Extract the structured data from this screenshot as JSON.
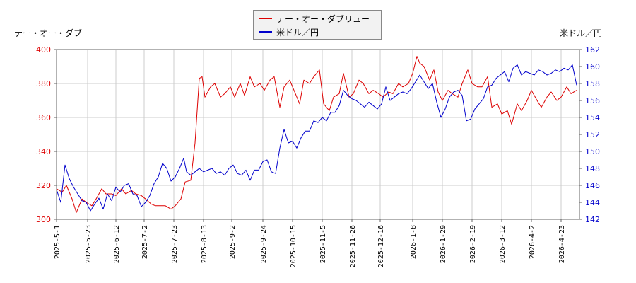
{
  "chart_data": {
    "type": "line",
    "y_left_label": "テー・オー・ダブ",
    "y_right_label": "米ドル／円",
    "ylim_left": [
      300,
      400
    ],
    "ylim_right": [
      142,
      162
    ],
    "yticks_left": [
      300,
      320,
      340,
      360,
      380,
      400
    ],
    "yticks_right": [
      142,
      144,
      146,
      148,
      150,
      152,
      154,
      156,
      158,
      160,
      162
    ],
    "xlim": [
      "2025-05-01",
      "2026-05-06"
    ],
    "xticks": [
      "2025-5-1",
      "2025-5-23",
      "2025-6-12",
      "2025-7-2",
      "2025-7-23",
      "2025-8-13",
      "2025-9-2",
      "2025-9-24",
      "2025-10-15",
      "2025-11-5",
      "2025-11-26",
      "2025-12-16",
      "2026-1-8",
      "2026-1-29",
      "2026-2-19",
      "2026-3-12",
      "2026-4-2",
      "2026-4-23"
    ],
    "grid": true,
    "legend_position": "top-center",
    "series": [
      {
        "name": "テー・オー・ダブリュー",
        "axis": "left",
        "color": "#dd0000",
        "points": [
          [
            "2025-05-01",
            318
          ],
          [
            "2025-05-05",
            316
          ],
          [
            "2025-05-08",
            320
          ],
          [
            "2025-05-12",
            312
          ],
          [
            "2025-05-15",
            304
          ],
          [
            "2025-05-19",
            312
          ],
          [
            "2025-05-22",
            310
          ],
          [
            "2025-05-26",
            308
          ],
          [
            "2025-05-29",
            312
          ],
          [
            "2025-06-02",
            318
          ],
          [
            "2025-06-05",
            315
          ],
          [
            "2025-06-09",
            315
          ],
          [
            "2025-06-12",
            314
          ],
          [
            "2025-06-16",
            318
          ],
          [
            "2025-06-19",
            315
          ],
          [
            "2025-06-23",
            317
          ],
          [
            "2025-06-26",
            315
          ],
          [
            "2025-06-30",
            314
          ],
          [
            "2025-07-03",
            312
          ],
          [
            "2025-07-07",
            309
          ],
          [
            "2025-07-10",
            308
          ],
          [
            "2025-07-14",
            308
          ],
          [
            "2025-07-17",
            308
          ],
          [
            "2025-07-21",
            306
          ],
          [
            "2025-07-24",
            308
          ],
          [
            "2025-07-28",
            312
          ],
          [
            "2025-07-31",
            322
          ],
          [
            "2025-08-04",
            323
          ],
          [
            "2025-08-07",
            345
          ],
          [
            "2025-08-10",
            383
          ],
          [
            "2025-08-12",
            384
          ],
          [
            "2025-08-14",
            372
          ],
          [
            "2025-08-18",
            378
          ],
          [
            "2025-08-21",
            380
          ],
          [
            "2025-08-25",
            372
          ],
          [
            "2025-08-28",
            374
          ],
          [
            "2025-09-01",
            378
          ],
          [
            "2025-09-04",
            372
          ],
          [
            "2025-09-08",
            380
          ],
          [
            "2025-09-11",
            373
          ],
          [
            "2025-09-15",
            384
          ],
          [
            "2025-09-18",
            378
          ],
          [
            "2025-09-22",
            380
          ],
          [
            "2025-09-25",
            376
          ],
          [
            "2025-09-29",
            382
          ],
          [
            "2025-10-02",
            384
          ],
          [
            "2025-10-06",
            366
          ],
          [
            "2025-10-09",
            378
          ],
          [
            "2025-10-13",
            382
          ],
          [
            "2025-10-16",
            376
          ],
          [
            "2025-10-20",
            368
          ],
          [
            "2025-10-23",
            382
          ],
          [
            "2025-10-27",
            380
          ],
          [
            "2025-10-30",
            384
          ],
          [
            "2025-11-03",
            388
          ],
          [
            "2025-11-06",
            368
          ],
          [
            "2025-11-10",
            364
          ],
          [
            "2025-11-13",
            372
          ],
          [
            "2025-11-17",
            374
          ],
          [
            "2025-11-20",
            386
          ],
          [
            "2025-11-24",
            372
          ],
          [
            "2025-11-27",
            374
          ],
          [
            "2025-12-01",
            382
          ],
          [
            "2025-12-04",
            380
          ],
          [
            "2025-12-08",
            374
          ],
          [
            "2025-12-11",
            376
          ],
          [
            "2025-12-15",
            374
          ],
          [
            "2025-12-18",
            372
          ],
          [
            "2025-12-22",
            375
          ],
          [
            "2025-12-25",
            374
          ],
          [
            "2025-12-29",
            380
          ],
          [
            "2026-01-01",
            378
          ],
          [
            "2026-01-05",
            380
          ],
          [
            "2026-01-08",
            386
          ],
          [
            "2026-01-11",
            396
          ],
          [
            "2026-01-13",
            392
          ],
          [
            "2026-01-16",
            390
          ],
          [
            "2026-01-20",
            382
          ],
          [
            "2026-01-23",
            388
          ],
          [
            "2026-01-26",
            375
          ],
          [
            "2026-01-29",
            370
          ],
          [
            "2026-02-02",
            376
          ],
          [
            "2026-02-05",
            374
          ],
          [
            "2026-02-09",
            372
          ],
          [
            "2026-02-12",
            380
          ],
          [
            "2026-02-16",
            388
          ],
          [
            "2026-02-19",
            380
          ],
          [
            "2026-02-23",
            378
          ],
          [
            "2026-02-26",
            378
          ],
          [
            "2026-03-02",
            384
          ],
          [
            "2026-03-05",
            366
          ],
          [
            "2026-03-09",
            368
          ],
          [
            "2026-03-12",
            362
          ],
          [
            "2026-03-16",
            364
          ],
          [
            "2026-03-19",
            356
          ],
          [
            "2026-03-23",
            368
          ],
          [
            "2026-03-26",
            364
          ],
          [
            "2026-03-30",
            370
          ],
          [
            "2026-04-02",
            376
          ],
          [
            "2026-04-06",
            370
          ],
          [
            "2026-04-09",
            366
          ],
          [
            "2026-04-13",
            372
          ],
          [
            "2026-04-16",
            375
          ],
          [
            "2026-04-20",
            370
          ],
          [
            "2026-04-23",
            372
          ],
          [
            "2026-04-27",
            378
          ],
          [
            "2026-04-30",
            374
          ],
          [
            "2026-05-04",
            376
          ]
        ]
      },
      {
        "name": "米ドル／円",
        "axis": "right",
        "color": "#0000cc",
        "points": [
          [
            "2025-05-01",
            145.5
          ],
          [
            "2025-05-04",
            144.0
          ],
          [
            "2025-05-07",
            148.4
          ],
          [
            "2025-05-10",
            146.8
          ],
          [
            "2025-05-13",
            145.8
          ],
          [
            "2025-05-16",
            145.0
          ],
          [
            "2025-05-19",
            144.2
          ],
          [
            "2025-05-22",
            144.0
          ],
          [
            "2025-05-25",
            143.0
          ],
          [
            "2025-05-28",
            143.8
          ],
          [
            "2025-05-31",
            144.5
          ],
          [
            "2025-06-03",
            143.2
          ],
          [
            "2025-06-06",
            145.0
          ],
          [
            "2025-06-09",
            144.2
          ],
          [
            "2025-06-12",
            145.8
          ],
          [
            "2025-06-15",
            145.2
          ],
          [
            "2025-06-18",
            146.0
          ],
          [
            "2025-06-21",
            146.2
          ],
          [
            "2025-06-24",
            145.0
          ],
          [
            "2025-06-27",
            144.8
          ],
          [
            "2025-06-30",
            143.5
          ],
          [
            "2025-07-03",
            144.0
          ],
          [
            "2025-07-06",
            144.8
          ],
          [
            "2025-07-09",
            146.2
          ],
          [
            "2025-07-12",
            147.0
          ],
          [
            "2025-07-15",
            148.6
          ],
          [
            "2025-07-18",
            148.0
          ],
          [
            "2025-07-21",
            146.5
          ],
          [
            "2025-07-24",
            147.0
          ],
          [
            "2025-07-27",
            148.0
          ],
          [
            "2025-07-30",
            149.2
          ],
          [
            "2025-08-01",
            147.6
          ],
          [
            "2025-08-04",
            147.2
          ],
          [
            "2025-08-07",
            147.6
          ],
          [
            "2025-08-10",
            148.0
          ],
          [
            "2025-08-13",
            147.6
          ],
          [
            "2025-08-16",
            147.8
          ],
          [
            "2025-08-19",
            148.0
          ],
          [
            "2025-08-22",
            147.4
          ],
          [
            "2025-08-25",
            147.6
          ],
          [
            "2025-08-28",
            147.2
          ],
          [
            "2025-08-31",
            148.0
          ],
          [
            "2025-09-03",
            148.4
          ],
          [
            "2025-09-06",
            147.4
          ],
          [
            "2025-09-09",
            147.2
          ],
          [
            "2025-09-12",
            147.8
          ],
          [
            "2025-09-15",
            146.6
          ],
          [
            "2025-09-18",
            147.8
          ],
          [
            "2025-09-21",
            147.8
          ],
          [
            "2025-09-24",
            148.8
          ],
          [
            "2025-09-27",
            149.0
          ],
          [
            "2025-09-30",
            147.6
          ],
          [
            "2025-10-03",
            147.4
          ],
          [
            "2025-10-06",
            150.4
          ],
          [
            "2025-10-09",
            152.6
          ],
          [
            "2025-10-12",
            151.0
          ],
          [
            "2025-10-15",
            151.2
          ],
          [
            "2025-10-18",
            150.4
          ],
          [
            "2025-10-21",
            151.6
          ],
          [
            "2025-10-24",
            152.4
          ],
          [
            "2025-10-27",
            152.4
          ],
          [
            "2025-10-30",
            153.6
          ],
          [
            "2025-11-02",
            153.4
          ],
          [
            "2025-11-05",
            154.0
          ],
          [
            "2025-11-08",
            153.6
          ],
          [
            "2025-11-11",
            154.6
          ],
          [
            "2025-11-14",
            154.6
          ],
          [
            "2025-11-17",
            155.4
          ],
          [
            "2025-11-20",
            157.2
          ],
          [
            "2025-11-23",
            156.6
          ],
          [
            "2025-11-26",
            156.2
          ],
          [
            "2025-11-29",
            156.0
          ],
          [
            "2025-12-02",
            155.6
          ],
          [
            "2025-12-05",
            155.2
          ],
          [
            "2025-12-08",
            155.8
          ],
          [
            "2025-12-11",
            155.4
          ],
          [
            "2025-12-14",
            155.0
          ],
          [
            "2025-12-17",
            155.6
          ],
          [
            "2025-12-20",
            157.6
          ],
          [
            "2025-12-23",
            156.0
          ],
          [
            "2025-12-26",
            156.4
          ],
          [
            "2025-12-29",
            156.8
          ],
          [
            "2026-01-01",
            157.0
          ],
          [
            "2026-01-04",
            156.8
          ],
          [
            "2026-01-07",
            157.4
          ],
          [
            "2026-01-10",
            158.2
          ],
          [
            "2026-01-13",
            159.0
          ],
          [
            "2026-01-16",
            158.2
          ],
          [
            "2026-01-19",
            157.4
          ],
          [
            "2026-01-22",
            158.0
          ],
          [
            "2026-01-25",
            155.8
          ],
          [
            "2026-01-28",
            154.0
          ],
          [
            "2026-01-31",
            155.0
          ],
          [
            "2026-02-03",
            156.4
          ],
          [
            "2026-02-06",
            157.0
          ],
          [
            "2026-02-09",
            157.2
          ],
          [
            "2026-02-12",
            156.6
          ],
          [
            "2026-02-15",
            153.6
          ],
          [
            "2026-02-18",
            153.8
          ],
          [
            "2026-02-21",
            155.0
          ],
          [
            "2026-02-24",
            155.6
          ],
          [
            "2026-02-27",
            156.2
          ],
          [
            "2026-03-02",
            157.6
          ],
          [
            "2026-03-05",
            157.8
          ],
          [
            "2026-03-08",
            158.6
          ],
          [
            "2026-03-11",
            159.0
          ],
          [
            "2026-03-14",
            159.4
          ],
          [
            "2026-03-17",
            158.2
          ],
          [
            "2026-03-20",
            159.8
          ],
          [
            "2026-03-23",
            160.2
          ],
          [
            "2026-03-26",
            159.0
          ],
          [
            "2026-03-29",
            159.4
          ],
          [
            "2026-04-01",
            159.2
          ],
          [
            "2026-04-04",
            159.0
          ],
          [
            "2026-04-07",
            159.6
          ],
          [
            "2026-04-10",
            159.4
          ],
          [
            "2026-04-13",
            159.0
          ],
          [
            "2026-04-16",
            159.2
          ],
          [
            "2026-04-19",
            159.6
          ],
          [
            "2026-04-22",
            159.4
          ],
          [
            "2026-04-25",
            159.8
          ],
          [
            "2026-04-28",
            159.6
          ],
          [
            "2026-05-01",
            160.2
          ],
          [
            "2026-05-04",
            157.8
          ]
        ]
      }
    ]
  }
}
